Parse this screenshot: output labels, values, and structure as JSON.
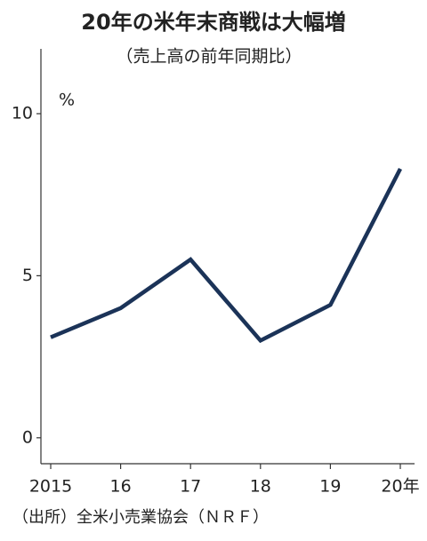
{
  "chart_data": {
    "type": "line",
    "title": "20年の米年末商戦は大幅増",
    "subtitle": "（売上高の前年同期比）",
    "ylabel": "%",
    "source": "（出所）全米小売業協会（ＮＲＦ）",
    "categories": [
      "2015",
      "16",
      "17",
      "18",
      "19",
      "20年"
    ],
    "values": [
      3.1,
      4.0,
      5.5,
      3.0,
      4.1,
      8.3
    ],
    "color": "#1b3358",
    "ylim": [
      -0.8,
      12
    ],
    "yticks": [
      0,
      5,
      10
    ]
  }
}
